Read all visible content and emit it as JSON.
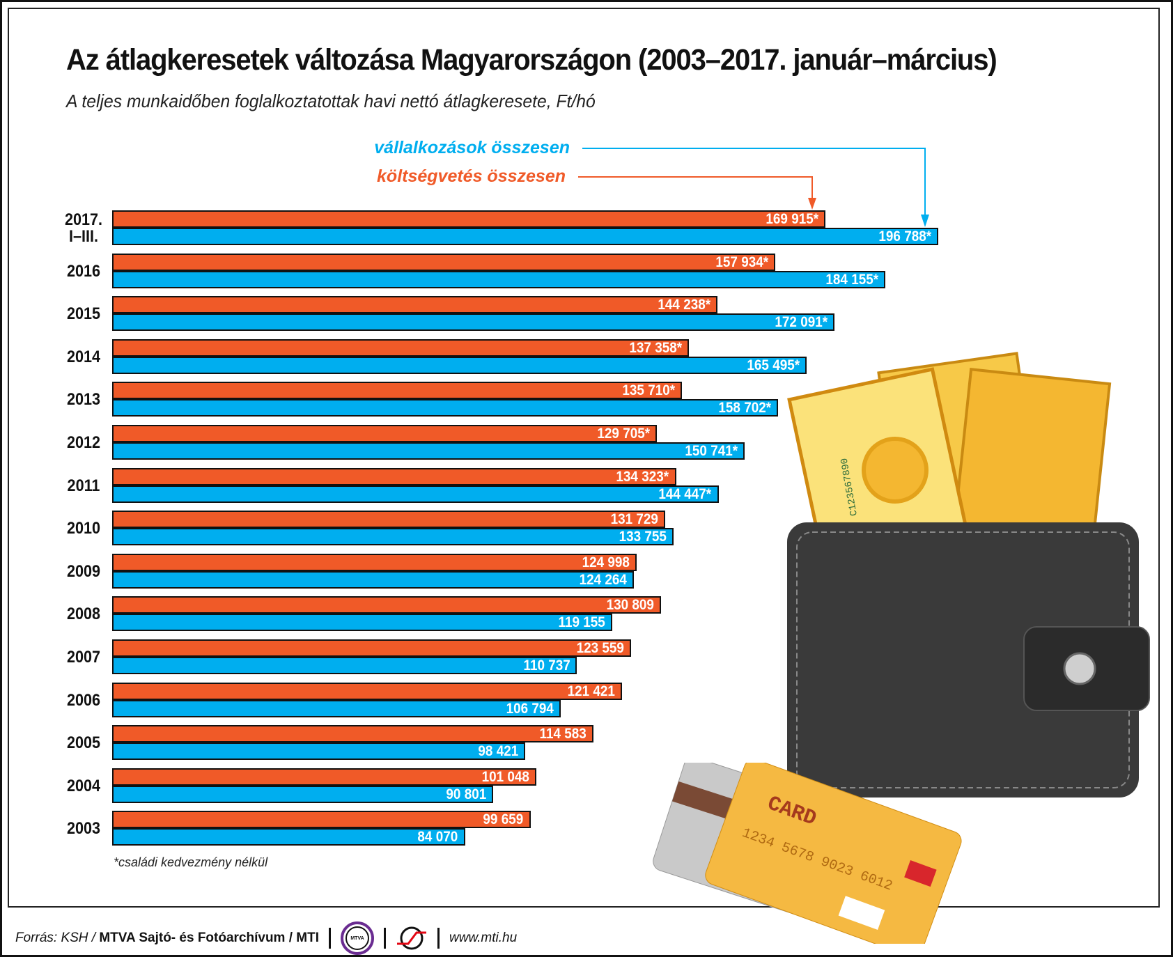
{
  "title": "Az átlagkeresetek változása Magyarországon (2003–2017. január–március)",
  "subtitle": "A teljes munkaidőben foglalkoztatottak havi nettó átlagkeresete, Ft/hó",
  "footnote": "*családi kedvezmény nélkül",
  "footer": {
    "source_prefix": "Forrás: KSH /",
    "source_bold": "MTVA Sajtó- és Fotóarchívum / MTI",
    "logo_text": "MTVA",
    "url": "www.mti.hu"
  },
  "illustration": {
    "card_text": "CARD",
    "card_number": "1234 5678 9023 6012",
    "bill_serial": "C123567890"
  },
  "colors": {
    "koltsegvetes": "#f05a28",
    "vallalkozasok": "#00aeef"
  },
  "chart_data": {
    "type": "bar",
    "orientation": "horizontal",
    "title": "Az átlagkeresetek változása Magyarországon (2003–2017. január–március)",
    "subtitle": "A teljes munkaidőben foglalkoztatottak havi nettó átlagkeresete, Ft/hó",
    "categories": [
      "2017. I–III.",
      "2016",
      "2015",
      "2014",
      "2013",
      "2012",
      "2011",
      "2010",
      "2009",
      "2008",
      "2007",
      "2006",
      "2005",
      "2004",
      "2003"
    ],
    "series": [
      {
        "name": "költségvetés összesen",
        "color": "#f05a28",
        "values": [
          169915,
          157934,
          144238,
          137358,
          135710,
          129705,
          134323,
          131729,
          124998,
          130809,
          123559,
          121421,
          114583,
          101048,
          99659
        ],
        "labels": [
          "169 915*",
          "157 934*",
          "144 238*",
          "137 358*",
          "135 710*",
          "129 705*",
          "134 323*",
          "131 729",
          "124 998",
          "130 809",
          "123 559",
          "121 421",
          "114 583",
          "101 048",
          "99 659"
        ]
      },
      {
        "name": "vállalkozások összesen",
        "color": "#00aeef",
        "values": [
          196788,
          184155,
          172091,
          165495,
          158702,
          150741,
          144447,
          133755,
          124264,
          119155,
          110737,
          106794,
          98421,
          90801,
          84070
        ],
        "labels": [
          "196 788*",
          "184 155*",
          "172 091*",
          "165 495*",
          "158 702*",
          "150 741*",
          "144 447*",
          "133 755",
          "124 264",
          "119 155",
          "110 737",
          "106 794",
          "98 421",
          "90 801",
          "84 070"
        ]
      }
    ],
    "grid": false,
    "legend": "top, with arrows to first row"
  }
}
